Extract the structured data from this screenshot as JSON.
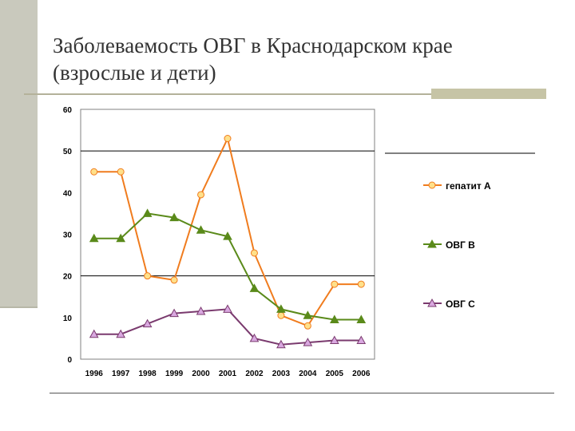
{
  "title": "Заболеваемость ОВГ  в Краснодарском крае (взрослые и дети)",
  "chart_data": {
    "type": "line",
    "x": [
      "1996",
      "1997",
      "1998",
      "1999",
      "2000",
      "2001",
      "2002",
      "2003",
      "2004",
      "2005",
      "2006"
    ],
    "ylim": [
      0,
      60
    ],
    "yticks": [
      0,
      10,
      20,
      30,
      40,
      50,
      60
    ],
    "grid": "y-major at 20 and 50",
    "legend_position": "right",
    "series": [
      {
        "name": "гепатит А",
        "color": "#f07c1e",
        "marker": "circle",
        "values": [
          45,
          45,
          20,
          19,
          39.5,
          53,
          25.5,
          10.5,
          8,
          18,
          18
        ]
      },
      {
        "name": "ОВГ  В",
        "color": "#5a8a1a",
        "marker": "triangle",
        "values": [
          29,
          29,
          35,
          34,
          31,
          29.5,
          17,
          12,
          10.5,
          9.5,
          9.5
        ]
      },
      {
        "name": "ОВГ  С",
        "color": "#7a3a6e",
        "marker": "triangle",
        "values": [
          6,
          6,
          8.5,
          11,
          11.5,
          12,
          5,
          3.5,
          4,
          4.5,
          4.5
        ]
      }
    ]
  }
}
